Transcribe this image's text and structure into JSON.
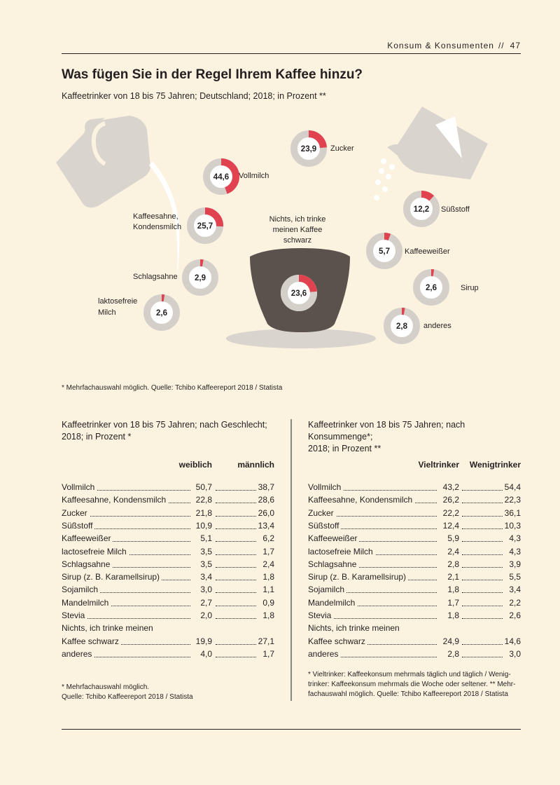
{
  "running_head": {
    "section": "Konsum & Konsumenten",
    "sep": "//",
    "page": "47"
  },
  "title": "Was fügen Sie in der Regel Ihrem Kaffee hinzu?",
  "subtitle": "Kaffeetrinker von 18 bis 75 Jahren; Deutschland; 2018; in Prozent **",
  "colors": {
    "background": "#fbf3e0",
    "accent": "#e0424f",
    "ring": "#d4cfc9",
    "cup": "#5c524d",
    "jug": "#d9d4cd"
  },
  "chart_data": {
    "type": "donut",
    "categories": [
      "Vollmilch",
      "Zucker",
      "Kaffeesahne, Kondensmilch",
      "Süßstoff",
      "Schlagsahne",
      "Kaffeeweißer",
      "laktosefreie Milch",
      "Sirup",
      "anderes",
      "Nichts, ich trinke meinen Kaffee schwarz"
    ],
    "values": [
      44.6,
      23.9,
      25.7,
      12.2,
      2.9,
      5.7,
      2.6,
      2.6,
      2.8,
      23.6
    ],
    "value_labels": [
      "44,6",
      "23,9",
      "25,7",
      "12,2",
      "2,9",
      "5,7",
      "2,6",
      "2,6",
      "2,8",
      "23,6"
    ],
    "ylim": [
      0,
      100
    ]
  },
  "infographic_labels": {
    "vollmilch": "Vollmilch",
    "zucker": "Zucker",
    "kaffeesahne_1": "Kaffeesahne,",
    "kaffeesahne_2": "Kondensmilch",
    "suessstoff": "Süßstoff",
    "schlagsahne": "Schlagsahne",
    "kaffeeweisser": "Kaffeeweißer",
    "laktosefrei_1": "laktosefreie",
    "laktosefrei_2": "Milch",
    "sirup": "Sirup",
    "anderes": "anderes",
    "schwarz_1": "Nichts, ich trinke",
    "schwarz_2": "meinen Kaffee",
    "schwarz_3": "schwarz"
  },
  "footnote_top": "* Mehrfachauswahl möglich. Quelle: Tchibo Kaffeereport 2018 / Statista",
  "left_table": {
    "desc_1": "Kaffeetrinker von 18 bis 75 Jahren; nach Geschlecht;",
    "desc_2": "2018; in Prozent *",
    "col1": "weiblich",
    "col2": "männlich",
    "rows": [
      {
        "label": "Vollmilch",
        "v1": "50,7",
        "v2": "38,7"
      },
      {
        "label": "Kaffeesahne, Kondensmilch",
        "v1": "22,8",
        "v2": "28,6"
      },
      {
        "label": "Zucker",
        "v1": "21,8",
        "v2": "26,0"
      },
      {
        "label": "Süßstoff",
        "v1": "10,9",
        "v2": "13,4"
      },
      {
        "label": "Kaffeeweißer",
        "v1": "5,1",
        "v2": "6,2"
      },
      {
        "label": "lactosefreie Milch",
        "v1": "3,5",
        "v2": "1,7"
      },
      {
        "label": "Schlagsahne",
        "v1": "3,5",
        "v2": "2,4"
      },
      {
        "label": "Sirup (z. B. Karamellsirup)",
        "v1": "3,4",
        "v2": "1,8"
      },
      {
        "label": "Sojamilch",
        "v1": "3,0",
        "v2": "1,1"
      },
      {
        "label": "Mandelmilch",
        "v1": "2,7",
        "v2": "0,9"
      },
      {
        "label": "Stevia",
        "v1": "2,0",
        "v2": "1,8"
      },
      {
        "label": "Nichts, ich trinke meinen",
        "v1": "",
        "v2": ""
      },
      {
        "label": "Kaffee schwarz",
        "v1": "19,9",
        "v2": "27,1"
      },
      {
        "label": "anderes",
        "v1": "4,0",
        "v2": "1,7"
      }
    ],
    "note_1": "* Mehrfachauswahl möglich.",
    "note_2": "Quelle: Tchibo Kaffeereport 2018 / Statista"
  },
  "right_table": {
    "desc_1": "Kaffeetrinker von 18 bis 75 Jahren; nach Konsummenge*;",
    "desc_2": "2018; in Prozent **",
    "col1": "Vieltrinker",
    "col2": "Wenigtrinker",
    "rows": [
      {
        "label": "Vollmilch",
        "v1": "43,2",
        "v2": "54,4"
      },
      {
        "label": "Kaffeesahne, Kondensmilch",
        "v1": "26,2",
        "v2": "22,3"
      },
      {
        "label": "Zucker",
        "v1": "22,2",
        "v2": "36,1"
      },
      {
        "label": "Süßstoff",
        "v1": "12,4",
        "v2": "10,3"
      },
      {
        "label": "Kaffeeweißer",
        "v1": "5,9",
        "v2": "4,3"
      },
      {
        "label": "lactosefreie Milch",
        "v1": "2,4",
        "v2": "4,3"
      },
      {
        "label": "Schlagsahne",
        "v1": "2,8",
        "v2": "3,9"
      },
      {
        "label": "Sirup (z. B. Karamellsirup)",
        "v1": "2,1",
        "v2": "5,5"
      },
      {
        "label": "Sojamilch",
        "v1": "1,8",
        "v2": "3,4"
      },
      {
        "label": "Mandelmilch",
        "v1": "1,7",
        "v2": "2,2"
      },
      {
        "label": "Stevia",
        "v1": "1,8",
        "v2": "2,6"
      },
      {
        "label": "Nichts, ich trinke meinen",
        "v1": "",
        "v2": ""
      },
      {
        "label": "Kaffee schwarz",
        "v1": "24,9",
        "v2": "14,6"
      },
      {
        "label": "anderes",
        "v1": "2,8",
        "v2": "3,0"
      }
    ],
    "note_1": "* Vieltrinker: Kaffeekonsum mehrmals täglich und täglich / Wenig-",
    "note_2": "trinker: Kaffeekonsum mehrmals die Woche oder seltener. ** Mehr-",
    "note_3": "fachauswahl möglich. Quelle: Tchibo Kaffeereport 2018 / Statista"
  }
}
